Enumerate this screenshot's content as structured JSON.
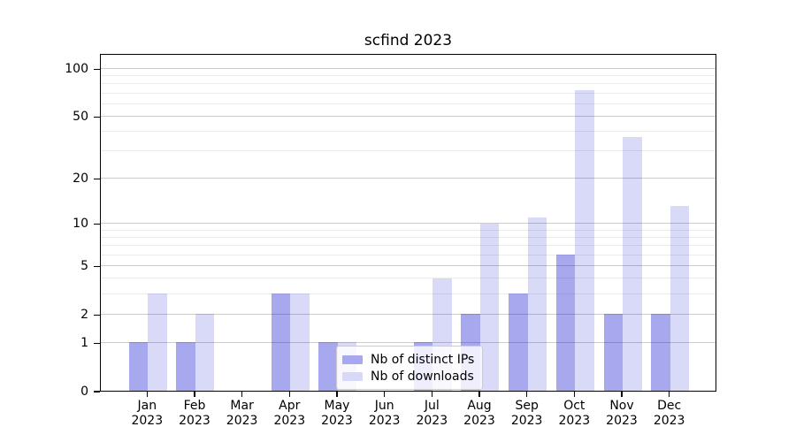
{
  "chart_data": {
    "type": "bar",
    "title": "scfind 2023",
    "categories": [
      "Jan",
      "Feb",
      "Mar",
      "Apr",
      "May",
      "Jun",
      "Jul",
      "Aug",
      "Sep",
      "Oct",
      "Nov",
      "Dec"
    ],
    "year_line": "2023",
    "series": [
      {
        "name": "Nb of distinct IPs",
        "slug": "distinct-ips",
        "color_hex": "#a8a8f0",
        "fill_rgba": "rgba(0,0,205,0.34)",
        "values": [
          1,
          1,
          0,
          3,
          1,
          0,
          1,
          2,
          3,
          6,
          2,
          2
        ]
      },
      {
        "name": "Nb of downloads",
        "slug": "downloads",
        "color_hex": "#d8d8f8",
        "fill_rgba": "rgba(0,0,205,0.15)",
        "values": [
          3,
          2,
          0,
          3,
          1,
          0,
          4,
          10,
          11,
          73,
          37,
          13
        ]
      }
    ],
    "xlabel": "",
    "ylabel": "",
    "yscale": "log10(value+1)",
    "ylim": [
      0,
      125
    ],
    "yticks": [
      0,
      1,
      2,
      5,
      10,
      20,
      50,
      100
    ],
    "minor_yticks": [
      3,
      4,
      6,
      7,
      8,
      9,
      30,
      40,
      60,
      70,
      80,
      90
    ],
    "grid": {
      "major_color": "#cccccc",
      "minor_color": "#ebebeb"
    },
    "legend": {
      "position": "lower center-left",
      "border_color": "#cbcbcb"
    }
  }
}
